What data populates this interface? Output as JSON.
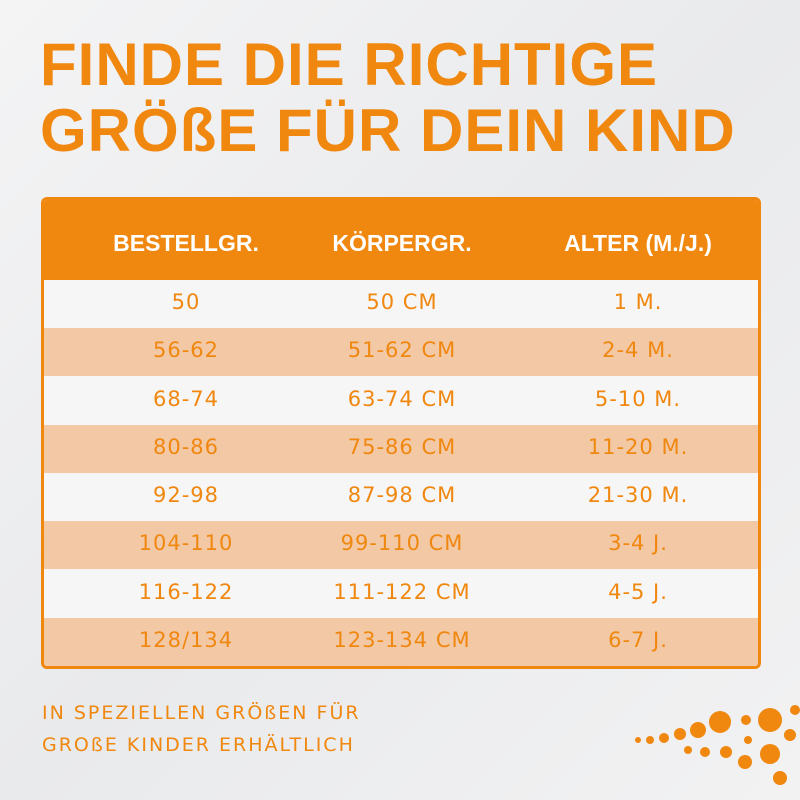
{
  "header": {
    "title_lines": [
      "FINDE DIE RICHTIGE",
      "GRÖßE FÜR DEIN KIND"
    ]
  },
  "table": {
    "columns": [
      "BESTELLGR.",
      "KÖRPERGR.",
      "ALTER (M./J.)"
    ],
    "rows": [
      [
        "50",
        "50 CM",
        "1 M."
      ],
      [
        "56-62",
        "51-62 CM",
        "2-4 M."
      ],
      [
        "68-74",
        "63-74 CM",
        "5-10 M."
      ],
      [
        "80-86",
        "75-86 CM",
        "11-20 M."
      ],
      [
        "92-98",
        "87-98 CM",
        "21-30 M."
      ],
      [
        "104-110",
        "99-110 CM",
        "3-4 J."
      ],
      [
        "116-122",
        "111-122 CM",
        "4-5 J."
      ],
      [
        "128/134",
        "123-134 CM",
        "6-7 J."
      ]
    ]
  },
  "footer": {
    "lines": [
      "IN SPEZIELLEN GRÖßEN FÜR",
      "GROßE KINDER ERHÄLTLICH"
    ]
  }
}
